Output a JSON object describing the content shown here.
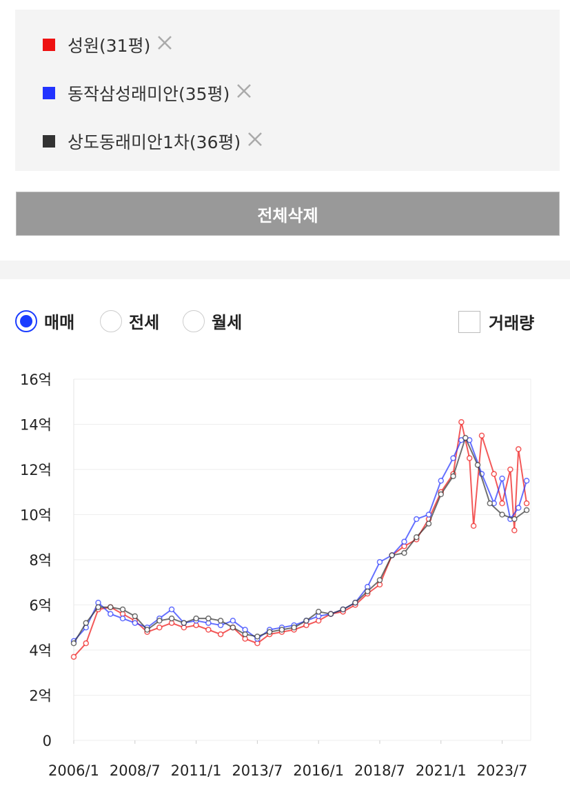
{
  "ui": {
    "clear_button": "전체삭제",
    "radios": [
      "매매",
      "전세",
      "월세"
    ],
    "selected_radio": 0,
    "checkbox": "거래량",
    "checked": false
  },
  "chart_data": {
    "type": "line",
    "ylim": [
      0,
      16
    ],
    "yticks": [
      0,
      {
        "value": 2,
        "label": "2억"
      },
      {
        "value": 4,
        "label": "4억"
      },
      {
        "value": 6,
        "label": "6억"
      },
      {
        "value": 8,
        "label": "8억"
      },
      {
        "value": 10,
        "label": "10억"
      },
      {
        "value": 12,
        "label": "12억"
      },
      {
        "value": 14,
        "label": "14억"
      },
      {
        "value": 16,
        "label": "16억"
      }
    ],
    "xlim": [
      "2006/1",
      "2024/9"
    ],
    "xticks": [
      "2006/1",
      "2008/7",
      "2011/1",
      "2013/7",
      "2016/1",
      "2018/7",
      "2021/1",
      "2023/7"
    ],
    "grid": true,
    "series": [
      {
        "name": "성원(31평)",
        "color": "#ee1111",
        "x": [
          "2006/1",
          "2006/7",
          "2007/1",
          "2007/7",
          "2008/1",
          "2008/7",
          "2009/1",
          "2009/7",
          "2010/1",
          "2010/7",
          "2011/1",
          "2011/7",
          "2012/1",
          "2012/7",
          "2013/1",
          "2013/7",
          "2014/1",
          "2014/7",
          "2015/1",
          "2015/7",
          "2016/1",
          "2016/7",
          "2017/1",
          "2017/7",
          "2018/1",
          "2018/7",
          "2019/1",
          "2019/7",
          "2020/1",
          "2020/7",
          "2021/1",
          "2021/7",
          "2021/11",
          "2022/3",
          "2022/5",
          "2022/9",
          "2023/3",
          "2023/7",
          "2023/11",
          "2024/1",
          "2024/3",
          "2024/7"
        ],
        "values": [
          3.7,
          4.3,
          5.8,
          5.9,
          5.6,
          5.3,
          4.8,
          5.0,
          5.2,
          5.0,
          5.1,
          4.9,
          4.7,
          5.0,
          4.5,
          4.3,
          4.7,
          4.8,
          4.9,
          5.1,
          5.3,
          5.6,
          5.7,
          6.0,
          6.5,
          6.9,
          8.2,
          8.6,
          8.9,
          9.8,
          11.0,
          11.8,
          14.1,
          12.5,
          9.5,
          13.5,
          11.8,
          10.5,
          12.0,
          9.3,
          12.9,
          10.5
        ]
      },
      {
        "name": "동작삼성래미안(35평)",
        "color": "#2233ff",
        "x": [
          "2006/1",
          "2006/7",
          "2007/1",
          "2007/7",
          "2008/1",
          "2008/7",
          "2009/1",
          "2009/7",
          "2010/1",
          "2010/7",
          "2011/1",
          "2011/7",
          "2012/1",
          "2012/7",
          "2013/1",
          "2013/7",
          "2014/1",
          "2014/7",
          "2015/1",
          "2015/7",
          "2016/1",
          "2016/7",
          "2017/1",
          "2017/7",
          "2018/1",
          "2018/7",
          "2019/1",
          "2019/7",
          "2020/1",
          "2020/7",
          "2021/1",
          "2021/7",
          "2021/11",
          "2022/3",
          "2022/9",
          "2023/3",
          "2023/7",
          "2023/11",
          "2024/3",
          "2024/7"
        ],
        "values": [
          4.4,
          5.0,
          6.1,
          5.6,
          5.4,
          5.2,
          5.0,
          5.4,
          5.8,
          5.2,
          5.3,
          5.2,
          5.1,
          5.3,
          4.9,
          4.5,
          4.9,
          5.0,
          5.1,
          5.3,
          5.5,
          5.6,
          5.8,
          6.1,
          6.8,
          7.9,
          8.2,
          8.8,
          9.8,
          10.0,
          11.5,
          12.5,
          13.3,
          13.3,
          11.8,
          10.5,
          11.6,
          9.8,
          10.3,
          11.5
        ]
      },
      {
        "name": "상도동래미안1차(36평)",
        "color": "#333333",
        "x": [
          "2006/1",
          "2006/7",
          "2007/1",
          "2007/7",
          "2008/1",
          "2008/7",
          "2009/1",
          "2009/7",
          "2010/1",
          "2010/7",
          "2011/1",
          "2011/7",
          "2012/1",
          "2012/7",
          "2013/1",
          "2013/7",
          "2014/1",
          "2014/7",
          "2015/1",
          "2015/7",
          "2016/1",
          "2016/7",
          "2017/1",
          "2017/7",
          "2018/1",
          "2018/7",
          "2019/1",
          "2019/7",
          "2020/1",
          "2020/7",
          "2021/1",
          "2021/7",
          "2022/1",
          "2022/7",
          "2023/1",
          "2023/7",
          "2024/1",
          "2024/7"
        ],
        "values": [
          4.3,
          5.2,
          5.9,
          5.9,
          5.8,
          5.5,
          4.9,
          5.3,
          5.4,
          5.2,
          5.4,
          5.4,
          5.3,
          5.0,
          4.7,
          4.6,
          4.8,
          4.9,
          5.0,
          5.3,
          5.7,
          5.6,
          5.8,
          6.1,
          6.6,
          7.1,
          8.2,
          8.3,
          9.0,
          9.6,
          10.9,
          11.7,
          13.4,
          12.2,
          10.5,
          10.0,
          9.8,
          10.2
        ]
      }
    ]
  }
}
